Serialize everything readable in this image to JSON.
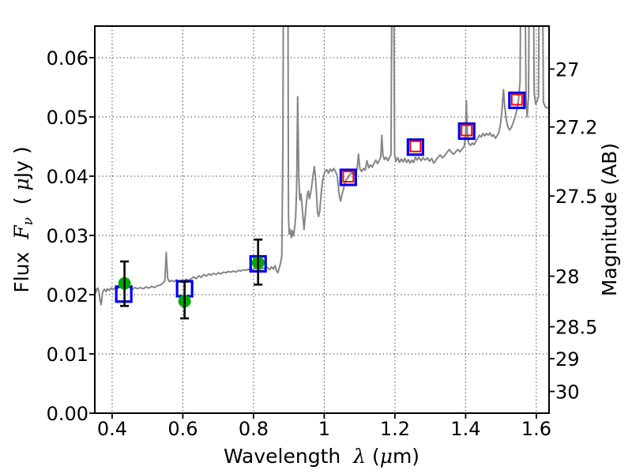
{
  "figure": {
    "background": "#ffffff"
  },
  "axes": {
    "x": {
      "label_parts": {
        "name": "Wavelength  ",
        "symbol": "λ",
        "unit_open": " (",
        "unit_mu": "μ",
        "unit_close": "m)"
      },
      "tick_labels": [
        "0.4",
        "0.6",
        "0.8",
        "1",
        "1.2",
        "1.4",
        "1.6"
      ],
      "tick_values": [
        0.4,
        0.6,
        0.8,
        1.0,
        1.2,
        1.4,
        1.6
      ]
    },
    "y_left": {
      "label_parts": {
        "name": "Flux  ",
        "symbol": "F",
        "subscript": "ν",
        "unit_open": "  ( ",
        "unit_mu": "μ",
        "unit_close": "Jy )"
      },
      "tick_labels": [
        "0.00",
        "0.01",
        "0.02",
        "0.03",
        "0.04",
        "0.05",
        "0.06"
      ],
      "tick_values": [
        0.0,
        0.01,
        0.02,
        0.03,
        0.04,
        0.05,
        0.06
      ]
    },
    "y_right": {
      "label": "Magnitude (AB)",
      "tick_labels": [
        "27",
        "27.2",
        "27.5",
        "28",
        "28.5",
        "29",
        "30"
      ],
      "tick_values": [
        27,
        27.2,
        27.5,
        28,
        28.5,
        29,
        30
      ]
    }
  },
  "chart_data": {
    "type": "line+scatter",
    "title": "",
    "xlabel": "Wavelength λ (μm)",
    "ylabel_left": "Flux Fν ( μJy )",
    "ylabel_right": "Magnitude (AB)",
    "xlim": [
      0.351,
      1.636
    ],
    "ylim_flux": [
      0.0,
      0.065333
    ],
    "grid": true,
    "colors": {
      "spectrum": "#858585",
      "observed": "#00aa00",
      "synthetic_blue": "#0000ee",
      "synthetic_red": "#ff0000",
      "errorbar": "#000000"
    },
    "spectrum": {
      "name": "model-spectrum",
      "points": [
        [
          0.351,
          0.0213
        ],
        [
          0.354,
          0.0203
        ],
        [
          0.357,
          0.021
        ],
        [
          0.36,
          0.0211
        ],
        [
          0.363,
          0.0204
        ],
        [
          0.366,
          0.019
        ],
        [
          0.369,
          0.0183
        ],
        [
          0.372,
          0.02
        ],
        [
          0.375,
          0.0207
        ],
        [
          0.379,
          0.0209
        ],
        [
          0.383,
          0.0205
        ],
        [
          0.387,
          0.021
        ],
        [
          0.392,
          0.0207
        ],
        [
          0.397,
          0.0211
        ],
        [
          0.403,
          0.0209
        ],
        [
          0.409,
          0.0212
        ],
        [
          0.415,
          0.021
        ],
        [
          0.422,
          0.0213
        ],
        [
          0.429,
          0.0211
        ],
        [
          0.436,
          0.0213
        ],
        [
          0.443,
          0.0215
        ],
        [
          0.45,
          0.0212
        ],
        [
          0.457,
          0.0209
        ],
        [
          0.464,
          0.0212
        ],
        [
          0.472,
          0.021
        ],
        [
          0.48,
          0.0212
        ],
        [
          0.488,
          0.021
        ],
        [
          0.496,
          0.0213
        ],
        [
          0.504,
          0.0211
        ],
        [
          0.512,
          0.0214
        ],
        [
          0.52,
          0.0212
        ],
        [
          0.528,
          0.0215
        ],
        [
          0.536,
          0.0216
        ],
        [
          0.543,
          0.0219
        ],
        [
          0.549,
          0.0223
        ],
        [
          0.553,
          0.0271
        ],
        [
          0.557,
          0.0228
        ],
        [
          0.562,
          0.0222
        ],
        [
          0.568,
          0.0224
        ],
        [
          0.575,
          0.0222
        ],
        [
          0.582,
          0.0225
        ],
        [
          0.589,
          0.0222
        ],
        [
          0.596,
          0.0224
        ],
        [
          0.603,
          0.0223
        ],
        [
          0.61,
          0.0226
        ],
        [
          0.617,
          0.0224
        ],
        [
          0.624,
          0.0227
        ],
        [
          0.631,
          0.023
        ],
        [
          0.638,
          0.0227
        ],
        [
          0.645,
          0.0232
        ],
        [
          0.652,
          0.0229
        ],
        [
          0.659,
          0.0234
        ],
        [
          0.666,
          0.0231
        ],
        [
          0.673,
          0.0235
        ],
        [
          0.68,
          0.0233
        ],
        [
          0.687,
          0.0236
        ],
        [
          0.694,
          0.0234
        ],
        [
          0.701,
          0.0237
        ],
        [
          0.708,
          0.0235
        ],
        [
          0.715,
          0.0238
        ],
        [
          0.722,
          0.0237
        ],
        [
          0.729,
          0.0239
        ],
        [
          0.736,
          0.0238
        ],
        [
          0.743,
          0.024
        ],
        [
          0.75,
          0.0238
        ],
        [
          0.757,
          0.0241
        ],
        [
          0.764,
          0.024
        ],
        [
          0.771,
          0.0242
        ],
        [
          0.778,
          0.0241
        ],
        [
          0.785,
          0.0243
        ],
        [
          0.792,
          0.0241
        ],
        [
          0.799,
          0.0243
        ],
        [
          0.806,
          0.0244
        ],
        [
          0.813,
          0.0245
        ],
        [
          0.82,
          0.0243
        ],
        [
          0.827,
          0.0245
        ],
        [
          0.833,
          0.0243
        ],
        [
          0.839,
          0.0246
        ],
        [
          0.845,
          0.0242
        ],
        [
          0.851,
          0.0247
        ],
        [
          0.856,
          0.0243
        ],
        [
          0.861,
          0.0249
        ],
        [
          0.865,
          0.024
        ],
        [
          0.869,
          0.0237
        ],
        [
          0.873,
          0.0246
        ],
        [
          0.877,
          0.0255
        ],
        [
          0.88,
          0.0265
        ],
        [
          0.883,
          0.045
        ],
        [
          0.885,
          0.08
        ],
        [
          0.897,
          0.08
        ],
        [
          0.899,
          0.033
        ],
        [
          0.901,
          0.0302
        ],
        [
          0.904,
          0.031
        ],
        [
          0.907,
          0.0296
        ],
        [
          0.91,
          0.0308
        ],
        [
          0.913,
          0.0299
        ],
        [
          0.916,
          0.0311
        ],
        [
          0.919,
          0.033
        ],
        [
          0.922,
          0.038
        ],
        [
          0.925,
          0.0534
        ],
        [
          0.928,
          0.04
        ],
        [
          0.931,
          0.036
        ],
        [
          0.934,
          0.037
        ],
        [
          0.937,
          0.0352
        ],
        [
          0.94,
          0.033
        ],
        [
          0.943,
          0.031
        ],
        [
          0.946,
          0.033
        ],
        [
          0.949,
          0.0352
        ],
        [
          0.952,
          0.0368
        ],
        [
          0.955,
          0.0375
        ],
        [
          0.958,
          0.0362
        ],
        [
          0.961,
          0.037
        ],
        [
          0.964,
          0.038
        ],
        [
          0.968,
          0.04
        ],
        [
          0.972,
          0.0416
        ],
        [
          0.975,
          0.04
        ],
        [
          0.978,
          0.037
        ],
        [
          0.981,
          0.034
        ],
        [
          0.984,
          0.0332
        ],
        [
          0.987,
          0.034
        ],
        [
          0.99,
          0.036
        ],
        [
          0.994,
          0.0385
        ],
        [
          0.998,
          0.04
        ],
        [
          1.002,
          0.0408
        ],
        [
          1.007,
          0.0411
        ],
        [
          1.012,
          0.0405
        ],
        [
          1.017,
          0.0412
        ],
        [
          1.022,
          0.0408
        ],
        [
          1.027,
          0.0413
        ],
        [
          1.032,
          0.0408
        ],
        [
          1.037,
          0.04
        ],
        [
          1.042,
          0.037
        ],
        [
          1.046,
          0.0358
        ],
        [
          1.05,
          0.0368
        ],
        [
          1.054,
          0.0377
        ],
        [
          1.058,
          0.0388
        ],
        [
          1.063,
          0.0395
        ],
        [
          1.068,
          0.0398
        ],
        [
          1.073,
          0.0403
        ],
        [
          1.078,
          0.0406
        ],
        [
          1.083,
          0.0402
        ],
        [
          1.088,
          0.0408
        ],
        [
          1.093,
          0.0412
        ],
        [
          1.097,
          0.0437
        ],
        [
          1.101,
          0.0412
        ],
        [
          1.106,
          0.0408
        ],
        [
          1.111,
          0.0413
        ],
        [
          1.116,
          0.041
        ],
        [
          1.121,
          0.0426
        ],
        [
          1.126,
          0.0414
        ],
        [
          1.131,
          0.0419
        ],
        [
          1.136,
          0.0415
        ],
        [
          1.141,
          0.0422
        ],
        [
          1.146,
          0.0427
        ],
        [
          1.151,
          0.0421
        ],
        [
          1.156,
          0.0427
        ],
        [
          1.16,
          0.0432
        ],
        [
          1.163,
          0.0469
        ],
        [
          1.166,
          0.0436
        ],
        [
          1.17,
          0.0428
        ],
        [
          1.175,
          0.0432
        ],
        [
          1.18,
          0.0426
        ],
        [
          1.185,
          0.0432
        ],
        [
          1.189,
          0.0437
        ],
        [
          1.192,
          0.08
        ],
        [
          1.196,
          0.08
        ],
        [
          1.199,
          0.0437
        ],
        [
          1.203,
          0.0425
        ],
        [
          1.208,
          0.0431
        ],
        [
          1.213,
          0.0423
        ],
        [
          1.218,
          0.0429
        ],
        [
          1.223,
          0.0424
        ],
        [
          1.228,
          0.043
        ],
        [
          1.233,
          0.0423
        ],
        [
          1.238,
          0.0428
        ],
        [
          1.243,
          0.0422
        ],
        [
          1.248,
          0.0427
        ],
        [
          1.253,
          0.0423
        ],
        [
          1.258,
          0.0432
        ],
        [
          1.263,
          0.0427
        ],
        [
          1.268,
          0.0432
        ],
        [
          1.274,
          0.0426
        ],
        [
          1.28,
          0.0431
        ],
        [
          1.286,
          0.0427
        ],
        [
          1.292,
          0.0431
        ],
        [
          1.298,
          0.0425
        ],
        [
          1.304,
          0.043
        ],
        [
          1.31,
          0.0422
        ],
        [
          1.316,
          0.0427
        ],
        [
          1.322,
          0.0432
        ],
        [
          1.328,
          0.0436
        ],
        [
          1.334,
          0.0431
        ],
        [
          1.34,
          0.0434
        ],
        [
          1.347,
          0.044
        ],
        [
          1.354,
          0.0445
        ],
        [
          1.36,
          0.044
        ],
        [
          1.366,
          0.0437
        ],
        [
          1.372,
          0.0441
        ],
        [
          1.378,
          0.0445
        ],
        [
          1.384,
          0.0441
        ],
        [
          1.39,
          0.0446
        ],
        [
          1.396,
          0.045
        ],
        [
          1.4,
          0.047
        ],
        [
          1.402,
          0.0528
        ],
        [
          1.405,
          0.0468
        ],
        [
          1.409,
          0.0455
        ],
        [
          1.414,
          0.0452
        ],
        [
          1.419,
          0.0456
        ],
        [
          1.424,
          0.0453
        ],
        [
          1.429,
          0.0459
        ],
        [
          1.434,
          0.0464
        ],
        [
          1.439,
          0.0469
        ],
        [
          1.444,
          0.0466
        ],
        [
          1.449,
          0.0472
        ],
        [
          1.454,
          0.0468
        ],
        [
          1.459,
          0.0472
        ],
        [
          1.464,
          0.0469
        ],
        [
          1.469,
          0.0473
        ],
        [
          1.474,
          0.0467
        ],
        [
          1.479,
          0.047
        ],
        [
          1.484,
          0.0464
        ],
        [
          1.489,
          0.0468
        ],
        [
          1.494,
          0.0474
        ],
        [
          1.499,
          0.049
        ],
        [
          1.503,
          0.0512
        ],
        [
          1.507,
          0.0546
        ],
        [
          1.511,
          0.0515
        ],
        [
          1.515,
          0.0495
        ],
        [
          1.52,
          0.0482
        ],
        [
          1.525,
          0.0478
        ],
        [
          1.53,
          0.0483
        ],
        [
          1.535,
          0.0491
        ],
        [
          1.54,
          0.05
        ],
        [
          1.545,
          0.0512
        ],
        [
          1.55,
          0.053
        ],
        [
          1.554,
          0.056
        ],
        [
          1.557,
          0.08
        ],
        [
          1.567,
          0.08
        ],
        [
          1.571,
          0.053
        ],
        [
          1.574,
          0.05
        ],
        [
          1.578,
          0.0535
        ],
        [
          1.581,
          0.08
        ],
        [
          1.591,
          0.08
        ],
        [
          1.594,
          0.054
        ],
        [
          1.598,
          0.0522
        ],
        [
          1.602,
          0.0526
        ],
        [
          1.606,
          0.0535
        ],
        [
          1.609,
          0.08
        ],
        [
          1.617,
          0.08
        ],
        [
          1.62,
          0.0525
        ],
        [
          1.625,
          0.0517
        ],
        [
          1.63,
          0.0515
        ],
        [
          1.636,
          0.0516
        ]
      ]
    },
    "series": [
      {
        "name": "observed-photometry-circles",
        "marker": "circle-filled",
        "points": [
          {
            "x": 0.435,
            "flux": 0.0219,
            "err_plus": 0.0037,
            "err_minus": 0.0038
          },
          {
            "x": 0.605,
            "flux": 0.0189,
            "err_plus": 0.0033,
            "err_minus": 0.0029
          },
          {
            "x": 0.813,
            "flux": 0.0254,
            "err_plus": 0.0039,
            "err_minus": 0.0037
          }
        ]
      },
      {
        "name": "synthetic-photometry-blue-squares",
        "marker": "square-open",
        "points": [
          {
            "x": 0.433,
            "flux": 0.0201
          },
          {
            "x": 0.605,
            "flux": 0.021
          },
          {
            "x": 0.813,
            "flux": 0.0252
          },
          {
            "x": 1.068,
            "flux": 0.0398
          },
          {
            "x": 1.258,
            "flux": 0.0449
          },
          {
            "x": 1.403,
            "flux": 0.0476
          },
          {
            "x": 1.545,
            "flux": 0.0528
          }
        ]
      },
      {
        "name": "synthetic-photometry-red-squares",
        "marker": "square-open",
        "points": [
          {
            "x": 1.068,
            "flux": 0.0398
          },
          {
            "x": 1.258,
            "flux": 0.0449
          },
          {
            "x": 1.403,
            "flux": 0.0476
          },
          {
            "x": 1.545,
            "flux": 0.0528
          }
        ]
      }
    ]
  }
}
